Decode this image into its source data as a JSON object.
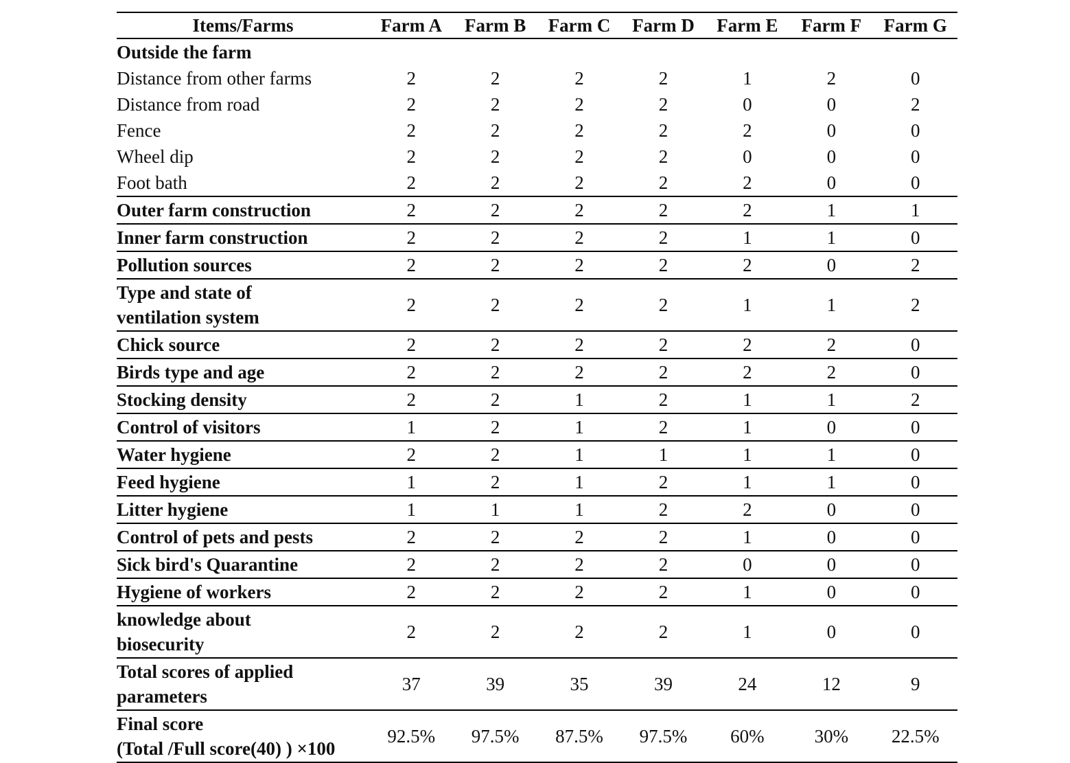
{
  "table": {
    "header": [
      "Items/Farms",
      "Farm A",
      "Farm B",
      "Farm C",
      "Farm D",
      "Farm E",
      "Farm F",
      "Farm G"
    ],
    "section": {
      "title": "Outside the farm",
      "rows": [
        {
          "label": [
            "Distance from other farms"
          ],
          "values": [
            2,
            2,
            2,
            2,
            1,
            2,
            0
          ]
        },
        {
          "label": [
            "Distance from road"
          ],
          "values": [
            2,
            2,
            2,
            2,
            0,
            0,
            2
          ]
        },
        {
          "label": [
            "Fence"
          ],
          "values": [
            2,
            2,
            2,
            2,
            2,
            0,
            0
          ]
        },
        {
          "label": [
            "Wheel dip"
          ],
          "values": [
            2,
            2,
            2,
            2,
            0,
            0,
            0
          ]
        },
        {
          "label": [
            "Foot bath"
          ],
          "values": [
            2,
            2,
            2,
            2,
            2,
            0,
            0
          ]
        }
      ]
    },
    "items": [
      {
        "label": [
          "Outer farm construction"
        ],
        "values": [
          2,
          2,
          2,
          2,
          2,
          1,
          1
        ]
      },
      {
        "label": [
          "Inner farm construction"
        ],
        "values": [
          2,
          2,
          2,
          2,
          1,
          1,
          0
        ]
      },
      {
        "label": [
          "Pollution sources"
        ],
        "values": [
          2,
          2,
          2,
          2,
          2,
          0,
          2
        ]
      },
      {
        "label": [
          "Type and state of",
          "ventilation system"
        ],
        "values": [
          2,
          2,
          2,
          2,
          1,
          1,
          2
        ]
      },
      {
        "label": [
          "Chick source"
        ],
        "values": [
          2,
          2,
          2,
          2,
          2,
          2,
          0
        ]
      },
      {
        "label": [
          "Birds type and age"
        ],
        "values": [
          2,
          2,
          2,
          2,
          2,
          2,
          0
        ]
      },
      {
        "label": [
          "Stocking density"
        ],
        "values": [
          2,
          2,
          1,
          2,
          1,
          1,
          2
        ]
      },
      {
        "label": [
          "Control of visitors"
        ],
        "values": [
          1,
          2,
          1,
          2,
          1,
          0,
          0
        ]
      },
      {
        "label": [
          "Water hygiene"
        ],
        "values": [
          2,
          2,
          1,
          1,
          1,
          1,
          0
        ]
      },
      {
        "label": [
          "Feed hygiene"
        ],
        "values": [
          1,
          2,
          1,
          2,
          1,
          1,
          0
        ]
      },
      {
        "label": [
          "Litter hygiene"
        ],
        "values": [
          1,
          1,
          1,
          2,
          2,
          0,
          0
        ]
      },
      {
        "label": [
          "Control of pets and pests"
        ],
        "values": [
          2,
          2,
          2,
          2,
          1,
          0,
          0
        ]
      },
      {
        "label": [
          "Sick bird's Quarantine"
        ],
        "values": [
          2,
          2,
          2,
          2,
          0,
          0,
          0
        ]
      },
      {
        "label": [
          "Hygiene of workers"
        ],
        "values": [
          2,
          2,
          2,
          2,
          1,
          0,
          0
        ]
      },
      {
        "label": [
          "knowledge about",
          "biosecurity"
        ],
        "values": [
          2,
          2,
          2,
          2,
          1,
          0,
          0
        ]
      },
      {
        "label": [
          "Total scores of  applied",
          "parameters"
        ],
        "values": [
          37,
          39,
          35,
          39,
          24,
          12,
          9
        ]
      },
      {
        "label": [
          "Final score",
          "(Total /Full score(40) ) ×100"
        ],
        "values": [
          "92.5%",
          "97.5%",
          "87.5%",
          "97.5%",
          "60%",
          "30%",
          "22.5%"
        ]
      }
    ]
  }
}
